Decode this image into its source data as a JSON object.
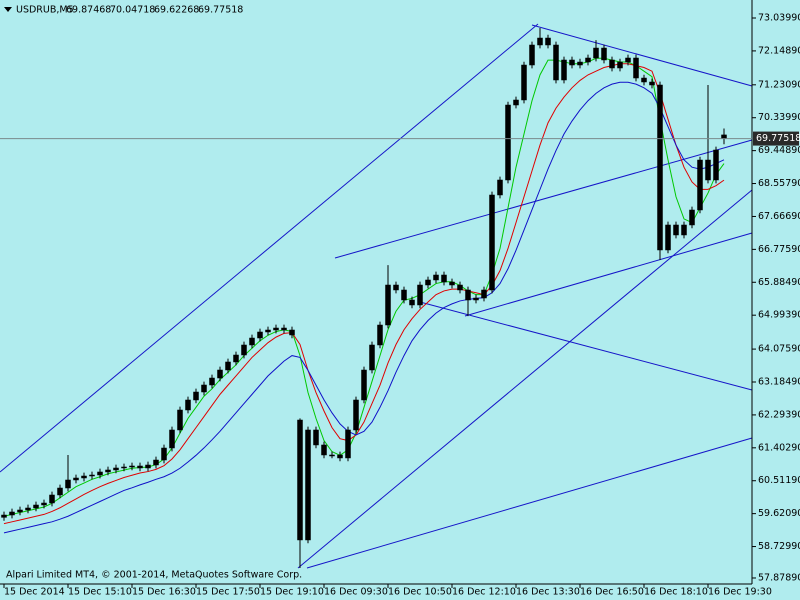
{
  "chart_data": {
    "type": "candlestick",
    "symbol": "USDRUB,M5",
    "watermark": "Alpari Limited MT4, © 2001-2014, MetaQuotes Software Corp.",
    "background": "#b0ecee",
    "color": "#000000",
    "trend_line_color": "#1515c8",
    "categories": [
      "15 Dec 2014",
      null,
      null,
      null,
      null,
      null,
      null,
      null,
      "15 Dec 15:10",
      null,
      null,
      null,
      null,
      null,
      null,
      null,
      "15 Dec 16:30",
      null,
      null,
      null,
      null,
      null,
      null,
      null,
      "15 Dec 17:50",
      null,
      null,
      null,
      null,
      null,
      null,
      null,
      "15 Dec 19:10",
      null,
      null,
      null,
      null,
      null,
      null,
      null,
      "16 Dec 09:30",
      null,
      null,
      null,
      null,
      null,
      null,
      null,
      "16 Dec 10:50",
      null,
      null,
      null,
      null,
      null,
      null,
      null,
      "16 Dec 12:10",
      null,
      null,
      null,
      null,
      null,
      null,
      null,
      "16 Dec 13:30",
      null,
      null,
      null,
      null,
      null,
      null,
      null,
      "16 Dec 16:50",
      null,
      null,
      null,
      null,
      null,
      null,
      null,
      "16 Dec 18:10",
      null,
      null,
      null,
      null,
      null,
      null,
      null,
      "16 Dec 19:30",
      null,
      null
    ],
    "open": [
      59.52,
      59.584,
      59.666,
      59.72,
      59.774,
      59.855,
      59.909,
      60.126,
      60.315,
      60.532,
      60.586,
      60.64,
      60.667,
      60.749,
      60.803,
      60.857,
      60.884,
      60.911,
      60.857,
      60.938,
      61.073,
      61.398,
      61.886,
      62.427,
      62.698,
      62.914,
      63.104,
      63.293,
      63.51,
      63.727,
      63.916,
      64.187,
      64.376,
      64.539,
      64.593,
      64.647,
      64.593,
      62.156,
      58.908,
      61.886,
      61.48,
      61.209,
      61.209,
      61.128,
      61.886,
      62.698,
      63.51,
      64.187,
      64.728,
      65.811,
      65.676,
      65.405,
      65.27,
      65.811,
      65.947,
      66.082,
      65.892,
      65.811,
      65.676,
      65.405,
      65.459,
      65.676,
      68.248,
      68.654,
      70.684,
      70.82,
      71.767,
      72.309,
      72.498,
      72.309,
      71.361,
      71.903,
      71.767,
      71.848,
      71.957,
      72.227,
      71.903,
      71.686,
      71.848,
      71.957,
      71.415,
      71.307,
      71.226,
      66.759,
      67.436,
      67.165,
      67.436,
      67.842,
      69.195,
      68.654,
      69.87468
    ],
    "high": [
      59.674,
      59.756,
      59.81,
      59.864,
      59.945,
      59.999,
      60.216,
      60.405,
      61.209,
      60.676,
      60.73,
      60.757,
      60.839,
      60.893,
      60.947,
      60.974,
      61.001,
      61.001,
      61.028,
      61.163,
      61.488,
      61.976,
      62.517,
      62.788,
      63.004,
      63.194,
      63.383,
      63.6,
      63.817,
      64.006,
      64.277,
      64.466,
      64.629,
      64.683,
      64.737,
      64.737,
      64.683,
      62.2,
      61.976,
      61.976,
      61.57,
      61.299,
      61.299,
      61.976,
      62.788,
      63.6,
      64.277,
      64.818,
      66.35,
      65.901,
      65.766,
      65.495,
      65.901,
      66.037,
      66.172,
      66.172,
      65.982,
      65.901,
      65.766,
      65.549,
      65.766,
      68.338,
      68.744,
      70.774,
      70.91,
      71.857,
      72.399,
      72.769,
      72.588,
      72.399,
      71.993,
      71.993,
      71.938,
      72.047,
      72.44,
      72.317,
      71.993,
      71.938,
      72.047,
      72.047,
      71.505,
      71.397,
      71.316,
      67.526,
      67.526,
      67.526,
      67.932,
      69.285,
      71.226,
      69.556,
      70.04718
    ],
    "low": [
      59.43,
      59.494,
      59.576,
      59.63,
      59.684,
      59.765,
      59.819,
      60.036,
      60.225,
      60.442,
      60.496,
      60.55,
      60.577,
      60.659,
      60.713,
      60.767,
      60.794,
      60.767,
      60.767,
      60.848,
      60.983,
      61.308,
      61.796,
      62.337,
      62.608,
      62.824,
      63.014,
      63.203,
      63.42,
      63.637,
      63.826,
      64.097,
      64.286,
      64.449,
      64.503,
      64.503,
      64.368,
      58.15,
      58.818,
      61.39,
      61.119,
      61.119,
      61.038,
      61.038,
      61.796,
      62.608,
      63.42,
      64.097,
      64.638,
      65.586,
      65.315,
      65.18,
      65.18,
      65.721,
      65.857,
      65.802,
      65.721,
      65.586,
      64.97,
      65.315,
      65.369,
      65.586,
      68.158,
      68.564,
      70.594,
      70.73,
      71.677,
      72.219,
      72.219,
      71.271,
      71.271,
      71.677,
      71.677,
      71.758,
      71.867,
      71.813,
      71.596,
      71.596,
      71.758,
      71.325,
      71.217,
      71.136,
      66.488,
      66.669,
      67.075,
      67.075,
      67.346,
      67.752,
      68.564,
      68.564,
      69.62268
    ],
    "close": [
      59.584,
      59.666,
      59.72,
      59.774,
      59.855,
      59.909,
      60.126,
      60.315,
      60.532,
      60.586,
      60.64,
      60.667,
      60.749,
      60.803,
      60.857,
      60.884,
      60.911,
      60.857,
      60.938,
      61.073,
      61.398,
      61.886,
      62.427,
      62.698,
      62.914,
      63.104,
      63.293,
      63.51,
      63.727,
      63.916,
      64.187,
      64.376,
      64.539,
      64.593,
      64.647,
      64.593,
      64.458,
      58.908,
      61.886,
      61.48,
      61.209,
      61.209,
      61.128,
      61.886,
      62.698,
      63.51,
      64.187,
      64.728,
      65.811,
      65.676,
      65.405,
      65.27,
      65.811,
      65.947,
      66.082,
      65.892,
      65.811,
      65.676,
      65.405,
      65.459,
      65.676,
      68.248,
      68.654,
      70.684,
      70.82,
      71.767,
      72.309,
      72.498,
      72.309,
      71.361,
      71.903,
      71.767,
      71.848,
      71.957,
      72.227,
      71.903,
      71.686,
      71.848,
      71.957,
      71.415,
      71.307,
      71.226,
      66.759,
      67.436,
      67.165,
      67.436,
      67.842,
      69.195,
      68.654,
      69.466,
      69.77518
    ],
    "series": [
      {
        "color": "#00c800",
        "values": [
          59.55,
          59.6,
          59.65,
          59.7,
          59.75,
          59.8,
          59.9,
          60.05,
          60.2,
          60.35,
          60.45,
          60.55,
          60.62,
          60.7,
          60.75,
          60.8,
          60.85,
          60.87,
          60.88,
          60.95,
          61.1,
          61.4,
          61.8,
          62.2,
          62.5,
          62.8,
          63.0,
          63.25,
          63.45,
          63.65,
          63.9,
          64.1,
          64.3,
          64.45,
          64.55,
          64.6,
          64.55,
          63.9,
          62.9,
          62.2,
          61.6,
          61.3,
          61.2,
          61.35,
          61.8,
          62.5,
          63.2,
          63.9,
          64.6,
          65.1,
          65.4,
          65.45,
          65.55,
          65.7,
          65.85,
          65.9,
          65.9,
          65.8,
          65.65,
          65.55,
          65.55,
          66.1,
          66.8,
          67.9,
          69.0,
          69.9,
          70.8,
          71.5,
          71.9,
          71.9,
          71.85,
          71.8,
          71.8,
          71.85,
          71.95,
          71.95,
          71.9,
          71.85,
          71.85,
          71.75,
          71.6,
          71.45,
          70.3,
          69.2,
          68.2,
          67.6,
          67.5,
          67.9,
          68.3,
          68.8,
          69.1
        ]
      },
      {
        "color": "#e00000",
        "values": [
          59.35,
          59.4,
          59.45,
          59.5,
          59.55,
          59.6,
          59.68,
          59.78,
          59.9,
          60.02,
          60.14,
          60.25,
          60.35,
          60.44,
          60.52,
          60.6,
          60.66,
          60.72,
          60.76,
          60.82,
          60.92,
          61.1,
          61.35,
          61.65,
          61.95,
          62.25,
          62.55,
          62.85,
          63.1,
          63.35,
          63.6,
          63.85,
          64.05,
          64.25,
          64.4,
          64.5,
          64.52,
          64.2,
          63.5,
          62.9,
          62.4,
          61.95,
          61.65,
          61.6,
          61.75,
          62.1,
          62.6,
          63.1,
          63.7,
          64.2,
          64.6,
          64.9,
          65.15,
          65.35,
          65.55,
          65.65,
          65.7,
          65.7,
          65.65,
          65.6,
          65.55,
          65.8,
          66.2,
          66.8,
          67.5,
          68.2,
          68.9,
          69.6,
          70.2,
          70.6,
          70.9,
          71.15,
          71.35,
          71.5,
          71.6,
          71.7,
          71.75,
          71.8,
          71.8,
          71.75,
          71.7,
          71.6,
          71.0,
          70.3,
          69.6,
          69.0,
          68.6,
          68.4,
          68.4,
          68.5,
          68.65
        ]
      },
      {
        "color": "#1010c8",
        "values": [
          59.1,
          59.15,
          59.2,
          59.25,
          59.3,
          59.35,
          59.4,
          59.47,
          59.55,
          59.65,
          59.75,
          59.85,
          59.95,
          60.05,
          60.15,
          60.25,
          60.32,
          60.4,
          60.47,
          60.55,
          60.62,
          60.72,
          60.85,
          61.02,
          61.2,
          61.4,
          61.62,
          61.85,
          62.1,
          62.35,
          62.6,
          62.85,
          63.1,
          63.35,
          63.55,
          63.75,
          63.9,
          63.85,
          63.5,
          63.1,
          62.7,
          62.35,
          62.05,
          61.85,
          61.75,
          61.85,
          62.1,
          62.5,
          62.95,
          63.45,
          63.9,
          64.3,
          64.6,
          64.85,
          65.05,
          65.2,
          65.3,
          65.38,
          65.42,
          65.45,
          65.47,
          65.6,
          65.85,
          66.25,
          66.75,
          67.3,
          67.85,
          68.4,
          68.95,
          69.45,
          69.9,
          70.25,
          70.55,
          70.8,
          71.0,
          71.15,
          71.25,
          71.3,
          71.3,
          71.25,
          71.15,
          71.0,
          70.6,
          70.1,
          69.6,
          69.2,
          69.0,
          68.95,
          69.0,
          69.1,
          69.2
        ]
      }
    ],
    "ylim": [
      57.716,
      73.473
    ],
    "yticks": [
      {
        "value": 73.0399,
        "label": "73.03990"
      },
      {
        "value": 72.1489,
        "label": "72.14890"
      },
      {
        "value": 71.2309,
        "label": "71.23090"
      },
      {
        "value": 70.3399,
        "label": "70.33990"
      },
      {
        "value": 69.4489,
        "label": "69.44890"
      },
      {
        "value": 68.5579,
        "label": "68.55790"
      },
      {
        "value": 67.6669,
        "label": "67.66690"
      },
      {
        "value": 66.7759,
        "label": "66.77590"
      },
      {
        "value": 65.8849,
        "label": "65.88490"
      },
      {
        "value": 64.9939,
        "label": "64.99390"
      },
      {
        "value": 64.0759,
        "label": "64.07590"
      },
      {
        "value": 63.1849,
        "label": "63.18490"
      },
      {
        "value": 62.2939,
        "label": "62.29390"
      },
      {
        "value": 61.4029,
        "label": "61.40290"
      },
      {
        "value": 60.5119,
        "label": "60.51190"
      },
      {
        "value": 59.6209,
        "label": "59.62090"
      },
      {
        "value": 58.7299,
        "label": "58.72990"
      },
      {
        "value": 57.8789,
        "label": "57.87890"
      }
    ]
  }
}
